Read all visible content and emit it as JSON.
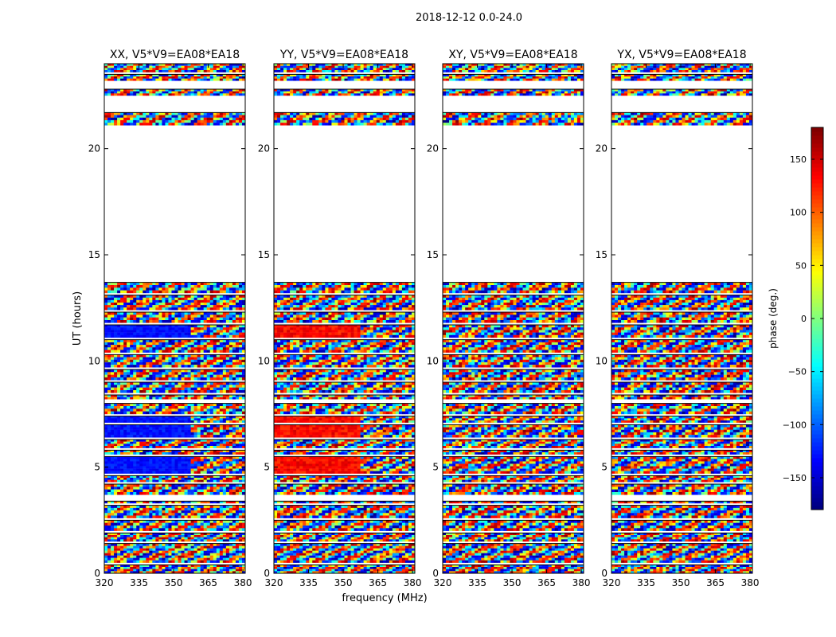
{
  "figure": {
    "suptitle": "2018-12-12 0.0-24.0",
    "xlabel": "frequency (MHz)",
    "ylabel": "UT (hours)"
  },
  "chart_data": {
    "type": "heatmap",
    "title": "2018-12-12 0.0-24.0",
    "xlabel": "frequency (MHz)",
    "ylabel": "UT (hours)",
    "xlim": [
      320,
      381
    ],
    "ylim": [
      0,
      24
    ],
    "xticks": [
      320,
      335,
      350,
      365,
      380
    ],
    "yticks": [
      0,
      5,
      10,
      15,
      20
    ],
    "panels": [
      {
        "title": "XX, V5*V9=EA08*EA18",
        "pol": "XX"
      },
      {
        "title": "YY, V5*V9=EA08*EA18",
        "pol": "YY"
      },
      {
        "title": "XY, V5*V9=EA08*EA18",
        "pol": "XY"
      },
      {
        "title": "YX, V5*V9=EA08*EA18",
        "pol": "YX"
      }
    ],
    "colorbar": {
      "label": "phase (deg.)",
      "range": [
        -180,
        180
      ],
      "ticks": [
        -150,
        -100,
        -50,
        0,
        50,
        100,
        150
      ],
      "colormap": "jet"
    },
    "data_bands_hours": [
      [
        0.0,
        0.4
      ],
      [
        0.5,
        1.4
      ],
      [
        1.5,
        1.9
      ],
      [
        2.0,
        2.5
      ],
      [
        2.6,
        3.2
      ],
      [
        3.3,
        3.4
      ],
      [
        3.7,
        4.2
      ],
      [
        4.3,
        4.6
      ],
      [
        4.7,
        5.5
      ],
      [
        5.6,
        5.8
      ],
      [
        5.9,
        6.3
      ],
      [
        6.4,
        7.0
      ],
      [
        7.1,
        7.4
      ],
      [
        7.5,
        8.0
      ],
      [
        8.2,
        8.4
      ],
      [
        8.5,
        9.0
      ],
      [
        9.1,
        9.6
      ],
      [
        9.7,
        10.3
      ],
      [
        10.4,
        11.0
      ],
      [
        11.1,
        11.7
      ],
      [
        11.8,
        12.3
      ],
      [
        12.4,
        13.1
      ],
      [
        13.2,
        13.7
      ],
      [
        21.1,
        21.7
      ],
      [
        22.5,
        22.8
      ],
      [
        23.2,
        23.5
      ],
      [
        23.6,
        24.0
      ]
    ],
    "strong_band_hours": [
      [
        7.0,
        7.4
      ],
      [
        4.8,
        5.4
      ],
      [
        11.2,
        11.4
      ]
    ]
  }
}
